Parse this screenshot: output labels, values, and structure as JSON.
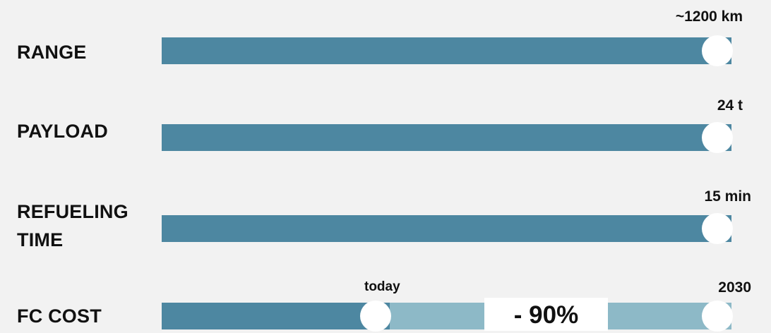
{
  "colors": {
    "background": "#f2f2f2",
    "bar_fill": "#4d87a1",
    "bar_remainder": "#8db9c7",
    "knob": "#ffffff",
    "text": "#111111",
    "badge_bg": "#ffffff"
  },
  "chart_data": {
    "type": "bar",
    "orientation": "horizontal",
    "categories": [
      "RANGE",
      "PAYLOAD",
      "REFUELING TIME",
      "FC COST"
    ],
    "rows": [
      {
        "label": "RANGE",
        "value_label": "~1200 km",
        "fill": 1.0
      },
      {
        "label": "PAYLOAD",
        "value_label": "24 t",
        "fill": 1.0
      },
      {
        "label": "REFUELING TIME",
        "value_label": "15 min",
        "fill": 1.0
      },
      {
        "label": "FC COST",
        "fill": 0.4,
        "marker_today": {
          "label": "today",
          "fill": 0.4
        },
        "marker_end": {
          "label": "2030",
          "fill": 1.0
        },
        "reduction_label": "- 90%"
      }
    ]
  }
}
